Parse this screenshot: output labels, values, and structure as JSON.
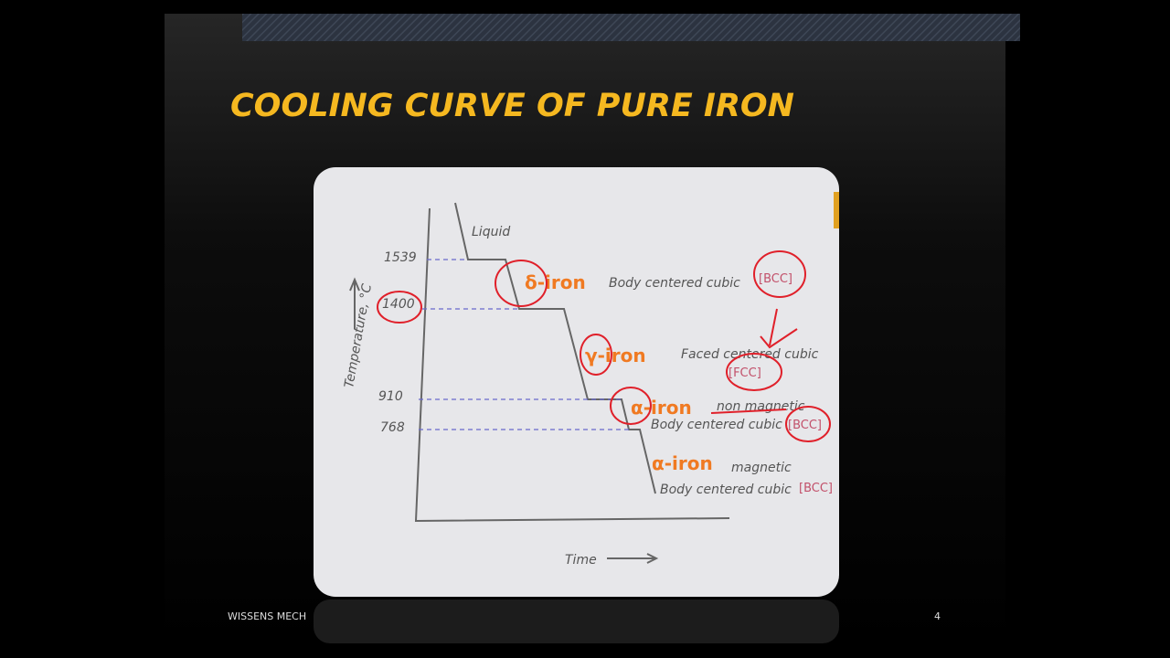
{
  "slide": {
    "title": "COOLING CURVE OF PURE IRON"
  },
  "footer": {
    "left": "WISSENS MECH",
    "page_number": "4"
  },
  "diagram": {
    "y_axis_label": "Temperature, °C",
    "x_axis_label": "Time",
    "temperatures": [
      "1539",
      "1400",
      "910",
      "768"
    ],
    "liquid": "Liquid",
    "phases": [
      {
        "name": "δ-iron",
        "note": "Body centered cubic",
        "structure": "[BCC]"
      },
      {
        "name": "γ-iron",
        "note": "Faced centered cubic",
        "structure": "[FCC]"
      },
      {
        "name": "α-iron",
        "note": "non magnetic",
        "note2": "Body centered cubic",
        "structure": "[BCC]"
      },
      {
        "name": "α-iron",
        "note": "magnetic",
        "note2": "Body centered cubic",
        "structure": "[BCC]"
      }
    ]
  }
}
